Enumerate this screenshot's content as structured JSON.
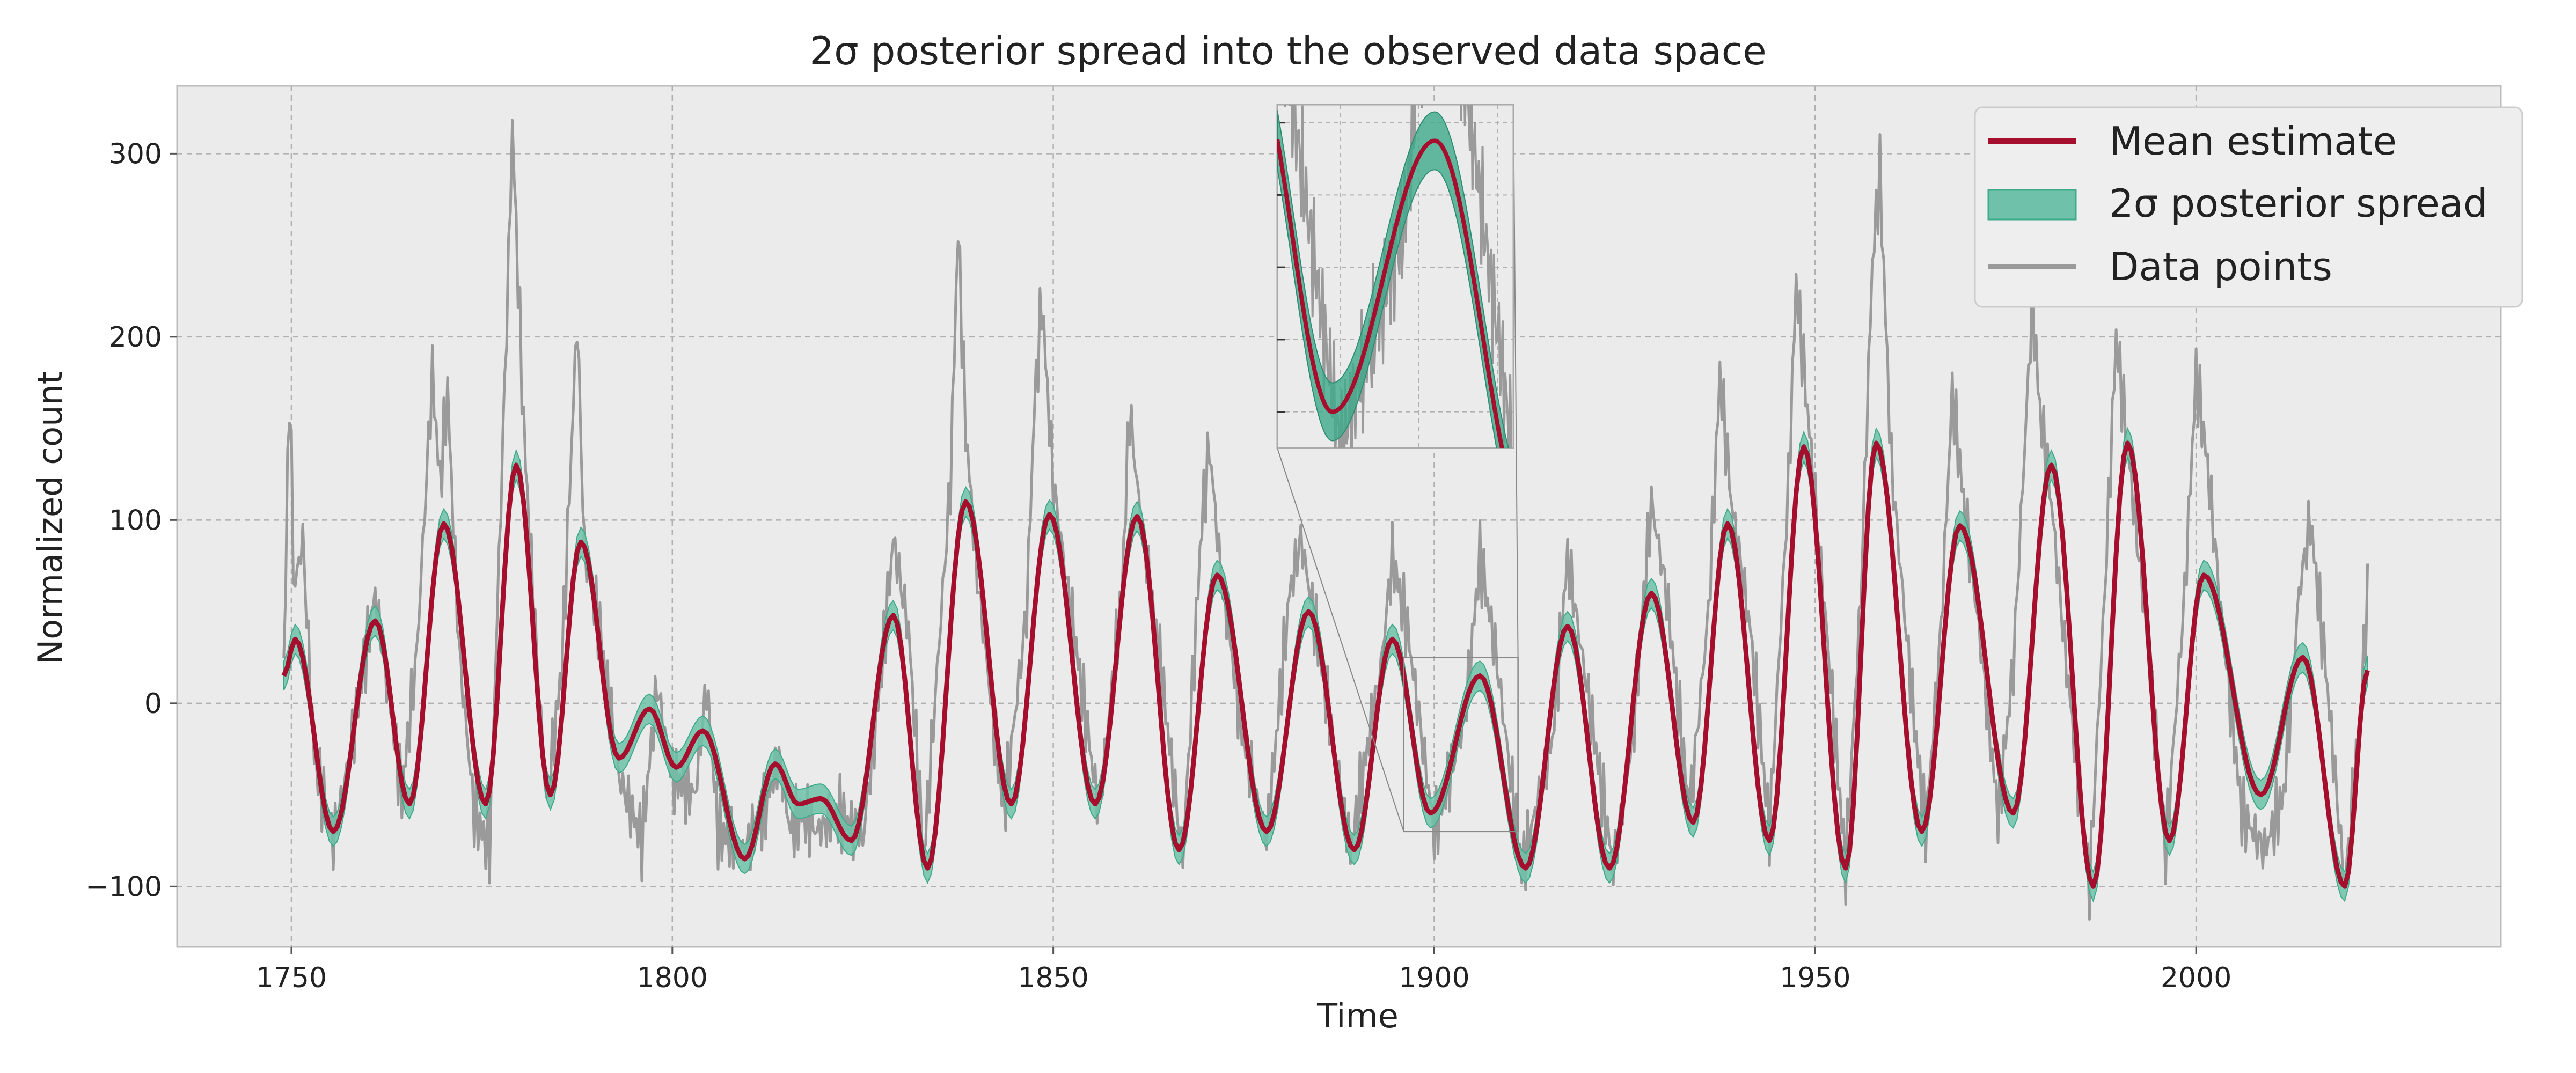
{
  "chart_data": {
    "type": "line",
    "title": "2σ posterior spread into the observed data space",
    "xlabel": "Time",
    "ylabel": "Normalized count",
    "xlim": [
      1735,
      2040
    ],
    "ylim": [
      -133,
      337
    ],
    "xticks": [
      1750,
      1800,
      1850,
      1900,
      1950,
      2000
    ],
    "yticks": [
      -100,
      0,
      100,
      200,
      300
    ],
    "grid": true,
    "legend_position": "top-right",
    "legend": [
      "Mean estimate",
      "2σ posterior spread",
      "Data points"
    ],
    "colors": {
      "mean": "#A50F2D",
      "band": "#3DAA8A",
      "data": "#9A9A9A",
      "axes_bg": "#EBEBEB",
      "grid": "#B0B0B0"
    },
    "series": [
      {
        "name": "Mean estimate",
        "x": [
          1749.0,
          1750.5,
          1755.5,
          1761.0,
          1765.5,
          1770.0,
          1775.5,
          1779.5,
          1784.0,
          1788.0,
          1793.0,
          1797.0,
          1800.5,
          1804.0,
          1809.5,
          1813.5,
          1816.5,
          1819.5,
          1823.5,
          1829.0,
          1833.5,
          1838.5,
          1844.5,
          1849.5,
          1855.5,
          1861.0,
          1866.5,
          1871.5,
          1878.0,
          1883.5,
          1889.5,
          1894.5,
          1899.5,
          1906.0,
          1912.0,
          1917.5,
          1923.0,
          1928.5,
          1934.0,
          1938.5,
          1944.0,
          1948.5,
          1954.0,
          1958.0,
          1964.0,
          1969.0,
          1976.0,
          1981.0,
          1986.5,
          1991.0,
          1996.5,
          2001.0,
          2008.5,
          2014.0,
          2019.5,
          2022.5
        ],
        "y": [
          15,
          35,
          -70,
          45,
          -55,
          98,
          -55,
          130,
          -50,
          88,
          -30,
          -3,
          -35,
          -15,
          -85,
          -33,
          -55,
          -52,
          -75,
          48,
          -90,
          110,
          -55,
          103,
          -55,
          102,
          -80,
          70,
          -70,
          50,
          -80,
          35,
          -60,
          15,
          -90,
          42,
          -90,
          60,
          -65,
          98,
          -75,
          140,
          -90,
          142,
          -70,
          97,
          -60,
          130,
          -100,
          142,
          -75,
          70,
          -50,
          25,
          -100,
          18
        ]
      },
      {
        "name": "2σ posterior spread",
        "note_width_y": 8
      },
      {
        "name": "Data points",
        "x": [
          1749.0,
          1749.8,
          1750.3,
          1751.5,
          1753.0,
          1755.5,
          1758.0,
          1761.0,
          1764.5,
          1766.5,
          1768.5,
          1769.5,
          1770.5,
          1772.0,
          1774.0,
          1776.0,
          1777.5,
          1778.5,
          1779.0,
          1780.5,
          1782.0,
          1783.5,
          1785.5,
          1787.5,
          1788.5,
          1790.5,
          1793.0,
          1796.0,
          1798.0,
          1800.0,
          1803.0,
          1804.5,
          1806.0,
          1809.5,
          1812.0,
          1814.0,
          1815.5,
          1817.0,
          1819.0,
          1822.0,
          1825.0,
          1827.5,
          1829.0,
          1831.0,
          1833.0,
          1836.5,
          1837.5,
          1838.5,
          1840.0,
          1843.5,
          1846.5,
          1847.5,
          1848.5,
          1850.0,
          1853.0,
          1856.0,
          1859.0,
          1860.0,
          1861.5,
          1863.5,
          1867.0,
          1869.5,
          1870.5,
          1872.0,
          1875.0,
          1878.0,
          1881.0,
          1882.5,
          1884.5,
          1889.0,
          1893.0,
          1894.5,
          1896.5,
          1900.0,
          1904.0,
          1906.0,
          1908.0,
          1911.5,
          1915.5,
          1917.5,
          1920.0,
          1923.5,
          1926.0,
          1928.5,
          1930.5,
          1933.5,
          1936.0,
          1937.5,
          1939.0,
          1941.5,
          1944.0,
          1946.5,
          1947.5,
          1949.0,
          1951.5,
          1954.0,
          1956.0,
          1957.5,
          1958.5,
          1960.0,
          1963.0,
          1964.5,
          1966.5,
          1968.0,
          1969.5,
          1971.5,
          1974.0,
          1976.0,
          1978.5,
          1979.5,
          1981.0,
          1983.0,
          1986.0,
          1988.0,
          1989.5,
          1991.0,
          1993.0,
          1996.0,
          1998.5,
          2000.0,
          2001.5,
          2003.5,
          2006.0,
          2009.0,
          2011.5,
          2013.5,
          2015.0,
          2017.0,
          2019.5,
          2021.5,
          2022.5
        ],
        "y": [
          20,
          183,
          60,
          90,
          -30,
          -75,
          -20,
          60,
          -50,
          30,
          180,
          120,
          170,
          30,
          -60,
          -80,
          110,
          240,
          315,
          150,
          40,
          -55,
          20,
          210,
          80,
          40,
          -40,
          -75,
          10,
          -40,
          -50,
          10,
          -70,
          -80,
          -60,
          -30,
          -70,
          -60,
          -70,
          -60,
          -75,
          20,
          90,
          40,
          -85,
          120,
          260,
          150,
          70,
          -60,
          50,
          160,
          220,
          120,
          30,
          -60,
          60,
          160,
          100,
          40,
          -85,
          100,
          140,
          70,
          -20,
          -75,
          60,
          90,
          40,
          -80,
          20,
          80,
          40,
          -70,
          -10,
          80,
          30,
          -90,
          -20,
          80,
          10,
          -90,
          -20,
          110,
          60,
          -60,
          50,
          180,
          110,
          40,
          -70,
          120,
          230,
          160,
          40,
          -90,
          60,
          240,
          290,
          130,
          -10,
          -70,
          40,
          170,
          110,
          40,
          -60,
          20,
          220,
          160,
          110,
          20,
          -100,
          60,
          200,
          140,
          60,
          -80,
          60,
          180,
          130,
          40,
          -60,
          -80,
          -50,
          60,
          100,
          20,
          -100,
          -10,
          60
        ]
      }
    ],
    "inset": {
      "xlim": [
        1896,
        1911
      ],
      "ylim": [
        -70,
        25
      ]
    }
  }
}
